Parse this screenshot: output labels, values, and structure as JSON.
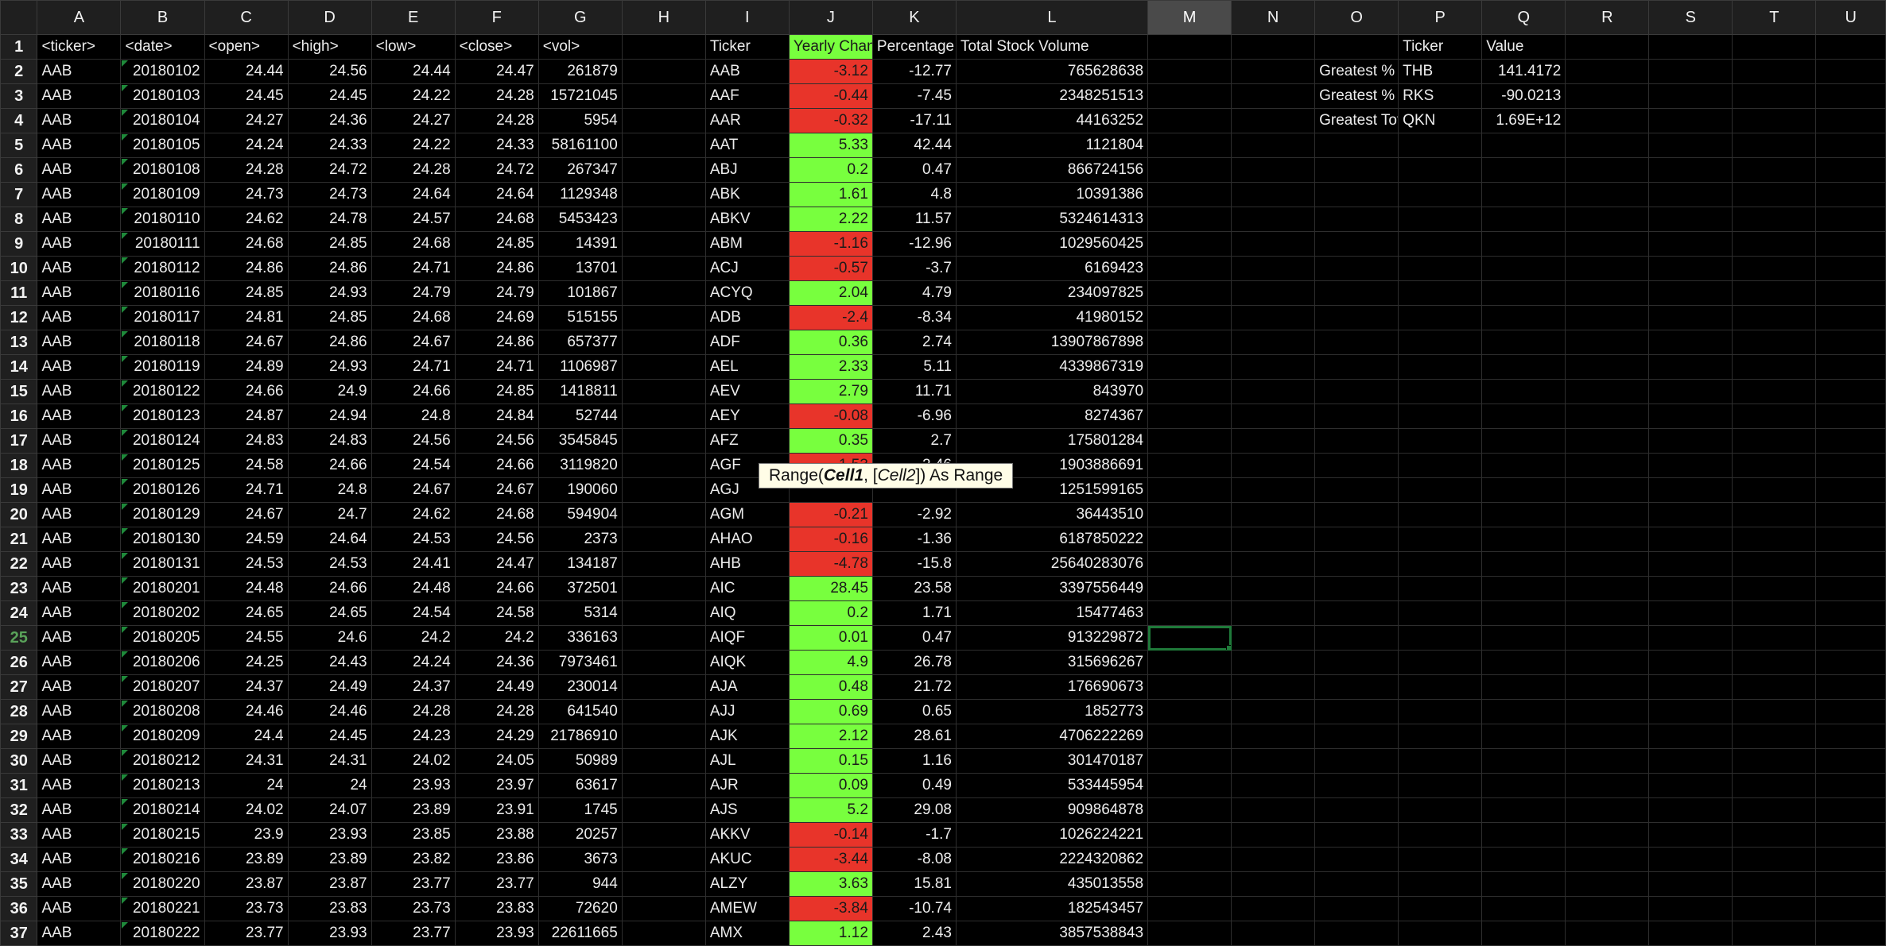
{
  "columns": [
    "A",
    "B",
    "C",
    "D",
    "E",
    "F",
    "G",
    "H",
    "I",
    "J",
    "K",
    "L",
    "M",
    "N",
    "O",
    "P",
    "Q",
    "R",
    "S",
    "T",
    "U"
  ],
  "selected_column": "M",
  "selected_row": 25,
  "active_cell": "M25",
  "colors": {
    "positive": "#78ff3e",
    "negative": "#e8342a",
    "selection": "#1f7a3a"
  },
  "headers": {
    "A": "<ticker>",
    "B": "<date>",
    "C": "<open>",
    "D": "<high>",
    "E": "<low>",
    "F": "<close>",
    "G": "<vol>",
    "I": "Ticker",
    "J": "Yearly Change",
    "K": "Percentage Change",
    "L": "Total Stock Volume",
    "P": "Ticker",
    "Q": "Value"
  },
  "data_rows": [
    [
      "AAB",
      "20180102",
      "24.44",
      "24.56",
      "24.44",
      "24.47",
      "261879"
    ],
    [
      "AAB",
      "20180103",
      "24.45",
      "24.45",
      "24.22",
      "24.28",
      "15721045"
    ],
    [
      "AAB",
      "20180104",
      "24.27",
      "24.36",
      "24.27",
      "24.28",
      "5954"
    ],
    [
      "AAB",
      "20180105",
      "24.24",
      "24.33",
      "24.22",
      "24.33",
      "58161100"
    ],
    [
      "AAB",
      "20180108",
      "24.28",
      "24.72",
      "24.28",
      "24.72",
      "267347"
    ],
    [
      "AAB",
      "20180109",
      "24.73",
      "24.73",
      "24.64",
      "24.64",
      "1129348"
    ],
    [
      "AAB",
      "20180110",
      "24.62",
      "24.78",
      "24.57",
      "24.68",
      "5453423"
    ],
    [
      "AAB",
      "20180111",
      "24.68",
      "24.85",
      "24.68",
      "24.85",
      "14391"
    ],
    [
      "AAB",
      "20180112",
      "24.86",
      "24.86",
      "24.71",
      "24.86",
      "13701"
    ],
    [
      "AAB",
      "20180116",
      "24.85",
      "24.93",
      "24.79",
      "24.79",
      "101867"
    ],
    [
      "AAB",
      "20180117",
      "24.81",
      "24.85",
      "24.68",
      "24.69",
      "515155"
    ],
    [
      "AAB",
      "20180118",
      "24.67",
      "24.86",
      "24.67",
      "24.86",
      "657377"
    ],
    [
      "AAB",
      "20180119",
      "24.89",
      "24.93",
      "24.71",
      "24.71",
      "1106987"
    ],
    [
      "AAB",
      "20180122",
      "24.66",
      "24.9",
      "24.66",
      "24.85",
      "1418811"
    ],
    [
      "AAB",
      "20180123",
      "24.87",
      "24.94",
      "24.8",
      "24.84",
      "52744"
    ],
    [
      "AAB",
      "20180124",
      "24.83",
      "24.83",
      "24.56",
      "24.56",
      "3545845"
    ],
    [
      "AAB",
      "20180125",
      "24.58",
      "24.66",
      "24.54",
      "24.66",
      "3119820"
    ],
    [
      "AAB",
      "20180126",
      "24.71",
      "24.8",
      "24.67",
      "24.67",
      "190060"
    ],
    [
      "AAB",
      "20180129",
      "24.67",
      "24.7",
      "24.62",
      "24.68",
      "594904"
    ],
    [
      "AAB",
      "20180130",
      "24.59",
      "24.64",
      "24.53",
      "24.56",
      "2373"
    ],
    [
      "AAB",
      "20180131",
      "24.53",
      "24.53",
      "24.41",
      "24.47",
      "134187"
    ],
    [
      "AAB",
      "20180201",
      "24.48",
      "24.66",
      "24.48",
      "24.66",
      "372501"
    ],
    [
      "AAB",
      "20180202",
      "24.65",
      "24.65",
      "24.54",
      "24.58",
      "5314"
    ],
    [
      "AAB",
      "20180205",
      "24.55",
      "24.6",
      "24.2",
      "24.2",
      "336163"
    ],
    [
      "AAB",
      "20180206",
      "24.25",
      "24.43",
      "24.24",
      "24.36",
      "7973461"
    ],
    [
      "AAB",
      "20180207",
      "24.37",
      "24.49",
      "24.37",
      "24.49",
      "230014"
    ],
    [
      "AAB",
      "20180208",
      "24.46",
      "24.46",
      "24.28",
      "24.28",
      "641540"
    ],
    [
      "AAB",
      "20180209",
      "24.4",
      "24.45",
      "24.23",
      "24.29",
      "21786910"
    ],
    [
      "AAB",
      "20180212",
      "24.31",
      "24.31",
      "24.02",
      "24.05",
      "50989"
    ],
    [
      "AAB",
      "20180213",
      "24",
      "24",
      "23.93",
      "23.97",
      "63617"
    ],
    [
      "AAB",
      "20180214",
      "24.02",
      "24.07",
      "23.89",
      "23.91",
      "1745"
    ],
    [
      "AAB",
      "20180215",
      "23.9",
      "23.93",
      "23.85",
      "23.88",
      "20257"
    ],
    [
      "AAB",
      "20180216",
      "23.89",
      "23.89",
      "23.82",
      "23.86",
      "3673"
    ],
    [
      "AAB",
      "20180220",
      "23.87",
      "23.87",
      "23.77",
      "23.77",
      "944"
    ],
    [
      "AAB",
      "20180221",
      "23.73",
      "23.83",
      "23.73",
      "23.83",
      "72620"
    ],
    [
      "AAB",
      "20180222",
      "23.77",
      "23.93",
      "23.77",
      "23.93",
      "22611665"
    ]
  ],
  "summary_rows": [
    [
      "AAB",
      "-3.12",
      "-12.77",
      "765628638"
    ],
    [
      "AAF",
      "-0.44",
      "-7.45",
      "2348251513"
    ],
    [
      "AAR",
      "-0.32",
      "-17.11",
      "44163252"
    ],
    [
      "AAT",
      "5.33",
      "42.44",
      "1121804"
    ],
    [
      "ABJ",
      "0.2",
      "0.47",
      "866724156"
    ],
    [
      "ABK",
      "1.61",
      "4.8",
      "10391386"
    ],
    [
      "ABKV",
      "2.22",
      "11.57",
      "5324614313"
    ],
    [
      "ABM",
      "-1.16",
      "-12.96",
      "1029560425"
    ],
    [
      "ACJ",
      "-0.57",
      "-3.7",
      "6169423"
    ],
    [
      "ACYQ",
      "2.04",
      "4.79",
      "234097825"
    ],
    [
      "ADB",
      "-2.4",
      "-8.34",
      "41980152"
    ],
    [
      "ADF",
      "0.36",
      "2.74",
      "13907867898"
    ],
    [
      "AEL",
      "2.33",
      "5.11",
      "4339867319"
    ],
    [
      "AEV",
      "2.79",
      "11.71",
      "843970"
    ],
    [
      "AEY",
      "-0.08",
      "-6.96",
      "8274367"
    ],
    [
      "AFZ",
      "0.35",
      "2.7",
      "175801284"
    ],
    [
      "AGF",
      "-1.53",
      "-2.46",
      "1903886691"
    ],
    [
      "AGJ",
      "",
      "",
      "1251599165"
    ],
    [
      "AGM",
      "-0.21",
      "-2.92",
      "36443510"
    ],
    [
      "AHAO",
      "-0.16",
      "-1.36",
      "6187850222"
    ],
    [
      "AHB",
      "-4.78",
      "-15.8",
      "25640283076"
    ],
    [
      "AIC",
      "28.45",
      "23.58",
      "3397556449"
    ],
    [
      "AIQ",
      "0.2",
      "1.71",
      "15477463"
    ],
    [
      "AIQF",
      "0.01",
      "0.47",
      "913229872"
    ],
    [
      "AIQK",
      "4.9",
      "26.78",
      "315696267"
    ],
    [
      "AJA",
      "0.48",
      "21.72",
      "176690673"
    ],
    [
      "AJJ",
      "0.69",
      "0.65",
      "1852773"
    ],
    [
      "AJK",
      "2.12",
      "28.61",
      "4706222269"
    ],
    [
      "AJL",
      "0.15",
      "1.16",
      "301470187"
    ],
    [
      "AJR",
      "0.09",
      "0.49",
      "533445954"
    ],
    [
      "AJS",
      "5.2",
      "29.08",
      "909864878"
    ],
    [
      "AKKV",
      "-0.14",
      "-1.7",
      "1026224221"
    ],
    [
      "AKUC",
      "-3.44",
      "-8.08",
      "2224320862"
    ],
    [
      "ALZY",
      "3.63",
      "15.81",
      "435013558"
    ],
    [
      "AMEW",
      "-3.84",
      "-10.74",
      "182543457"
    ],
    [
      "AMX",
      "1.12",
      "2.43",
      "3857538843"
    ]
  ],
  "greatest": [
    [
      "Greatest % Increase",
      "THB",
      "141.4172"
    ],
    [
      "Greatest % Decrease",
      "RKS",
      "-90.0213"
    ],
    [
      "Greatest Total Volume",
      "QKN",
      "1.69E+12"
    ]
  ],
  "tooltip": {
    "prefix": "Range(",
    "arg1": "Cell1",
    "sep": ", [",
    "arg2": "Cell2",
    "suffix": "]) As Range"
  }
}
